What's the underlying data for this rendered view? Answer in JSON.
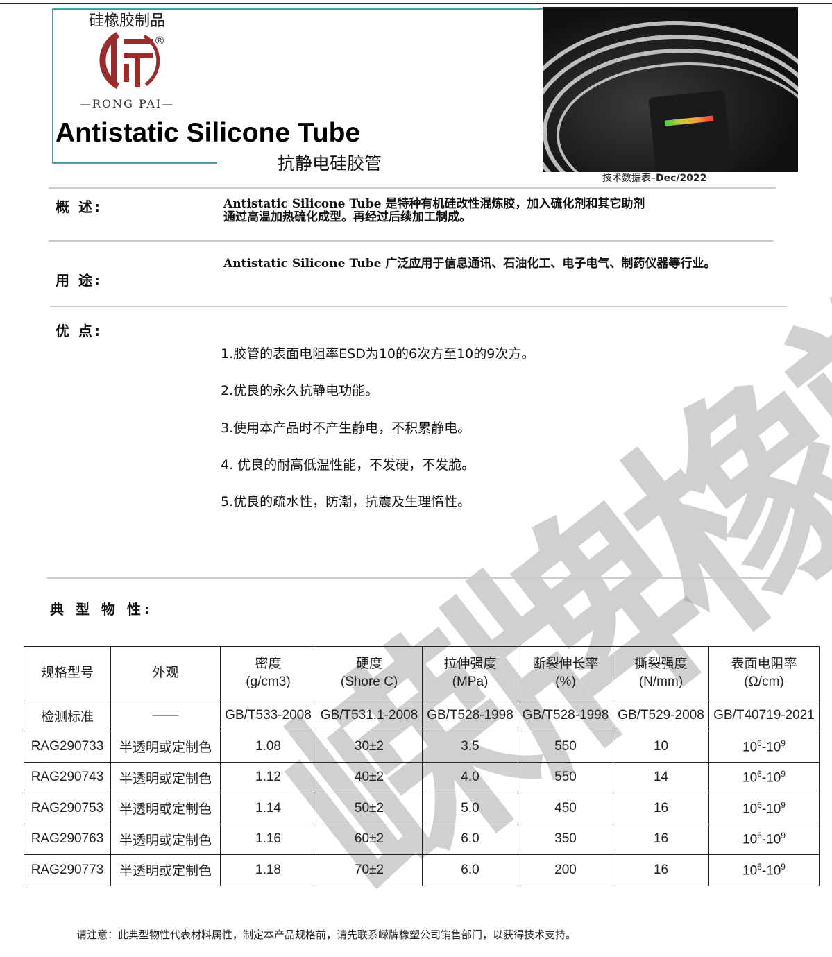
{
  "header": {
    "brand_cn": "硅橡胶制品",
    "brand_en": "—RONG PAI—",
    "title": "Antistatic Silicone Tube",
    "subtitle": "抗静电硅胶管",
    "datasheet_label": "技术数据表–",
    "datasheet_date": "Dec/2022",
    "registered": "®"
  },
  "watermark": "嵘牌橡塑",
  "overview": {
    "label": "概 述:",
    "text1": "Antistatic Silicone Tube 是特种有机硅改性混炼胶，加入硫化剂和其它助剂",
    "text2": "通过高温加热硫化成型。再经过后续加工制成。"
  },
  "usage": {
    "label": "用 途:",
    "text": "Antistatic Silicone Tube 广泛应用于信息通讯、石油化工、电子电气、制药仪器等行业。"
  },
  "advantages": {
    "label": "优 点:",
    "items": [
      "1.胶管的表面电阻率ESD为10的6次方至10的9次方。",
      "2.优良的永久抗静电功能。",
      "3.使用本产品时不产生静电，不积累静电。",
      "4. 优良的耐高低温性能，不发硬，不发脆。",
      "5.优良的疏水性，防潮，抗震及生理惰性。"
    ]
  },
  "properties": {
    "label": "典 型 物 性:"
  },
  "table": {
    "headers": [
      [
        "规格型号",
        ""
      ],
      [
        "外观",
        ""
      ],
      [
        "密度",
        "(g/cm3)"
      ],
      [
        "硬度",
        "(Shore C)"
      ],
      [
        "拉伸强度",
        "(MPa)"
      ],
      [
        "断裂伸长率",
        "(%)"
      ],
      [
        "撕裂强度",
        "(N/mm)"
      ],
      [
        "表面电阻率",
        "(Ω/cm)"
      ]
    ],
    "standards": [
      "检测标准",
      "——",
      "GB/T533-2008",
      "GB/T531.1-2008",
      "GB/T528-1998",
      "GB/T528-1998",
      "GB/T529-2008",
      "GB/T40719-2021"
    ],
    "rows": [
      [
        "RAG290733",
        "半透明或定制色",
        "1.08",
        "30±2",
        "3.5",
        "550",
        "10"
      ],
      [
        "RAG290743",
        "半透明或定制色",
        "1.12",
        "40±2",
        "4.0",
        "550",
        "14"
      ],
      [
        "RAG290753",
        "半透明或定制色",
        "1.14",
        "50±2",
        "5.0",
        "450",
        "16"
      ],
      [
        "RAG290763",
        "半透明或定制色",
        "1.16",
        "60±2",
        "6.0",
        "350",
        "16"
      ],
      [
        "RAG290773",
        "半透明或定制色",
        "1.18",
        "70±2",
        "6.0",
        "200",
        "16"
      ]
    ],
    "resistivity": {
      "base": "10",
      "exp_low": "6",
      "sep": "-",
      "exp_high": "9"
    }
  },
  "note": "请注意：此典型物性代表材料属性，制定本产品规格前，请先联系嵘牌橡塑公司销售部门，以获得技术支持。",
  "colors": {
    "frame": "#4a9aa0",
    "logo": "#9b2c2c"
  }
}
